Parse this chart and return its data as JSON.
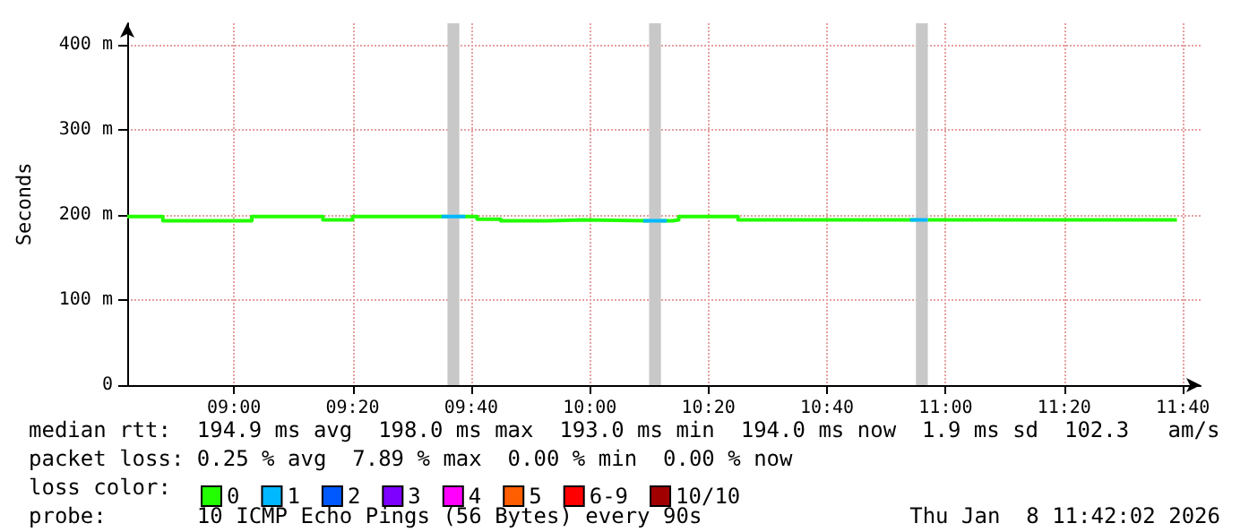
{
  "chart_data": {
    "type": "step",
    "ylabel": "Seconds",
    "legend_title": "loss color:",
    "xlim": [
      "2026-01-08T08:42",
      "2026-01-08T11:43"
    ],
    "xticks": [
      {
        "value": "2026-01-08T09:00",
        "label": "09:00"
      },
      {
        "value": "2026-01-08T09:20",
        "label": "09:20"
      },
      {
        "value": "2026-01-08T09:40",
        "label": "09:40"
      },
      {
        "value": "2026-01-08T10:00",
        "label": "10:00"
      },
      {
        "value": "2026-01-08T10:20",
        "label": "10:20"
      },
      {
        "value": "2026-01-08T10:40",
        "label": "10:40"
      },
      {
        "value": "2026-01-08T11:00",
        "label": "11:00"
      },
      {
        "value": "2026-01-08T11:20",
        "label": "11:20"
      },
      {
        "value": "2026-01-08T11:40",
        "label": "11:40"
      }
    ],
    "ylim": [
      0,
      425
    ],
    "yticks": [
      0,
      {
        "value": 100,
        "label": "100 m"
      },
      {
        "value": 200,
        "label": "200 m"
      },
      {
        "value": 300,
        "label": "300 m"
      },
      {
        "value": 400,
        "label": "400 m"
      }
    ],
    "grid": true,
    "legend": "bottom left",
    "marker": "none",
    "line_style": "solid",
    "series": [
      {
        "name": "0",
        "color": "#22ff00",
        "x": [
          "2026-01-08T08:42",
          "2026-01-08T08:48",
          "2026-01-08T09:03",
          "2026-01-08T09:15",
          "2026-01-08T09:20",
          "2026-01-08T09:36",
          "2026-01-08T09:38",
          "2026-01-08T09:41",
          "2026-01-08T09:45",
          "2026-01-08T09:53",
          "2026-01-08T09:59",
          "2026-01-08T10:10",
          "2026-01-08T10:12",
          "2026-01-08T10:14",
          "2026-01-08T10:15",
          "2026-01-08T10:25",
          "2026-01-08T10:55",
          "2026-01-08T10:57",
          "2026-01-08T11:39"
        ],
        "values": [
          198,
          193,
          198,
          194,
          198,
          null,
          198,
          195,
          193,
          194,
          193,
          null,
          193,
          194,
          198,
          194,
          null,
          194,
          194
        ]
      },
      {
        "name": "1",
        "color": "#00b8ff",
        "x": [
          "2026-01-08T09:35",
          "2026-01-08T09:38",
          "2026-01-08T09:39",
          "2026-01-08T10:09",
          "2026-01-08T10:12",
          "2026-01-08T10:13",
          "2026-01-08T10:54",
          "2026-01-08T10:57"
        ],
        "values": [
          198,
          198,
          null,
          193,
          193,
          null,
          194,
          194
        ]
      },
      {
        "name": "2",
        "color": "#0059ff"
      },
      {
        "name": "3",
        "color": "#7e00ff"
      },
      {
        "name": "4",
        "color": "#ff00ff"
      },
      {
        "name": "5",
        "color": "#ff5e00"
      },
      {
        "name": "6-9",
        "color": "#ff0000"
      },
      {
        "name": "10/10",
        "color": "#a10000"
      }
    ],
    "bands": [
      {
        "axis": "x",
        "from": "2026-01-08T09:36",
        "to": "2026-01-08T09:38",
        "color": "#c8c8c8"
      },
      {
        "axis": "x",
        "from": "2026-01-08T10:10",
        "to": "2026-01-08T10:12",
        "color": "#c8c8c8"
      },
      {
        "axis": "x",
        "from": "2026-01-08T10:55",
        "to": "2026-01-08T10:57",
        "color": "#c8c8c8"
      }
    ],
    "annotations": [
      "median rtt:  194.9 ms avg  198.0 ms max  193.0 ms min  194.0 ms now  1.9 ms sd  102.3   am/s",
      "packet loss: 0.25 % avg  7.89 % max  0.00 % min  0.00 % now",
      "probe:       10 ICMP Echo Pings (56 Bytes) every 90s",
      "Thu Jan  8 11:42:02 2026"
    ]
  }
}
